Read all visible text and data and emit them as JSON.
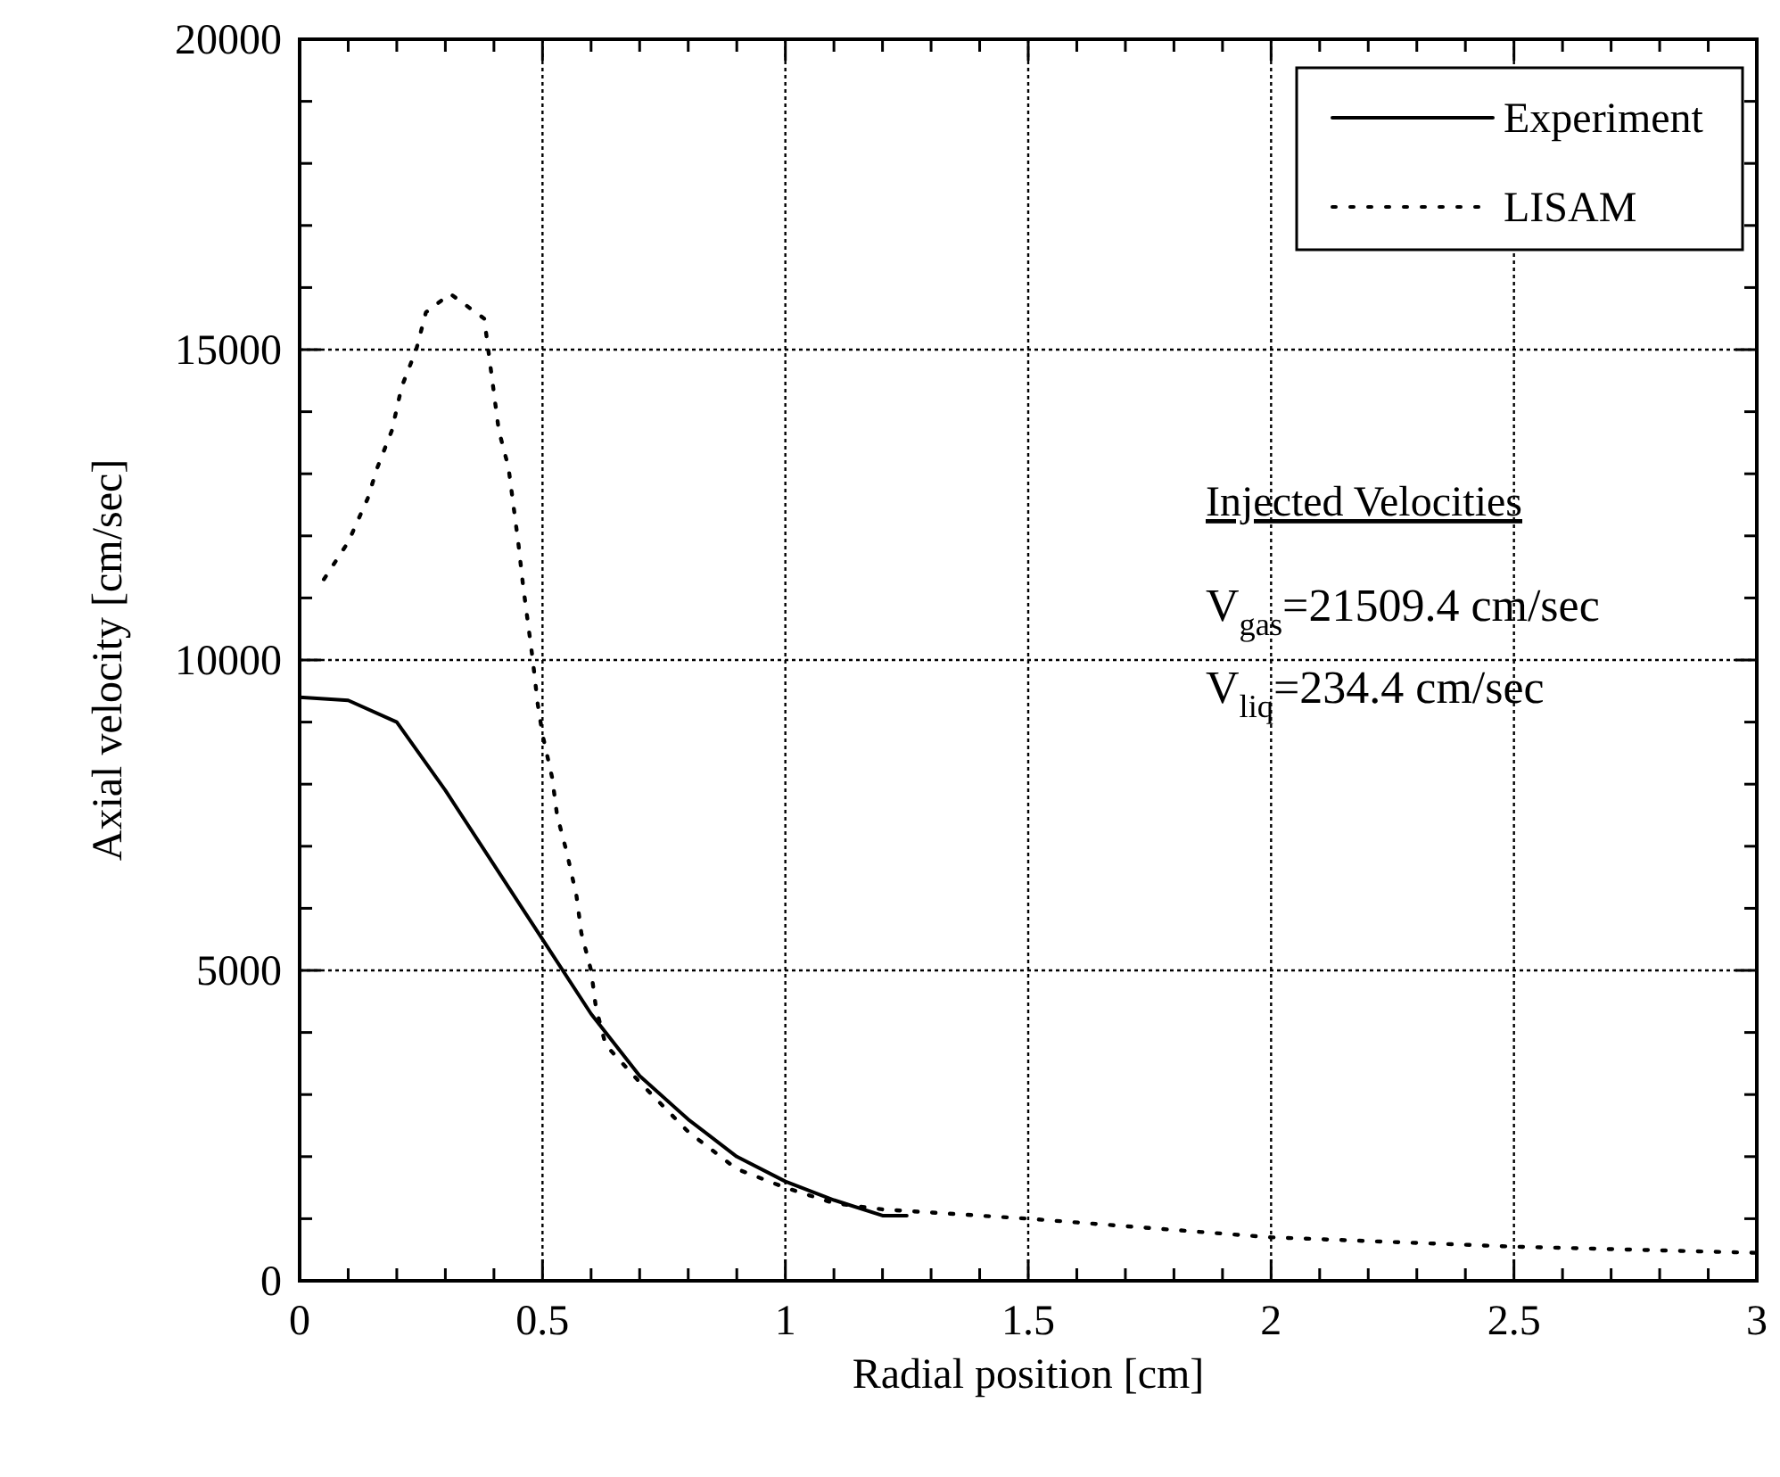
{
  "chart_data": {
    "type": "line",
    "xlabel": "Radial position [cm]",
    "ylabel": "Axial velocity [cm/sec]",
    "xlim": [
      0,
      3
    ],
    "ylim": [
      0,
      20000
    ],
    "xticks": [
      0,
      {
        "value": 0.1,
        "label": null
      },
      {
        "value": 0.2,
        "label": null
      },
      {
        "value": 0.3,
        "label": null
      },
      {
        "value": 0.4,
        "label": null
      },
      0.5,
      {
        "value": 0.6,
        "label": null
      },
      {
        "value": 0.7,
        "label": null
      },
      {
        "value": 0.8,
        "label": null
      },
      {
        "value": 0.9,
        "label": null
      },
      1,
      {
        "value": 1.1,
        "label": null
      },
      {
        "value": 1.2,
        "label": null
      },
      {
        "value": 1.3,
        "label": null
      },
      {
        "value": 1.4,
        "label": null
      },
      1.5,
      {
        "value": 1.6,
        "label": null
      },
      {
        "value": 1.7,
        "label": null
      },
      {
        "value": 1.8,
        "label": null
      },
      {
        "value": 1.9,
        "label": null
      },
      2,
      {
        "value": 2.1,
        "label": null
      },
      {
        "value": 2.2,
        "label": null
      },
      {
        "value": 2.3,
        "label": null
      },
      {
        "value": 2.4,
        "label": null
      },
      2.5,
      {
        "value": 2.6,
        "label": null
      },
      {
        "value": 2.7,
        "label": null
      },
      {
        "value": 2.8,
        "label": null
      },
      {
        "value": 2.9,
        "label": null
      },
      3
    ],
    "yticks": [
      0,
      {
        "value": 1000,
        "label": null
      },
      {
        "value": 2000,
        "label": null
      },
      {
        "value": 3000,
        "label": null
      },
      {
        "value": 4000,
        "label": null
      },
      5000,
      {
        "value": 6000,
        "label": null
      },
      {
        "value": 7000,
        "label": null
      },
      {
        "value": 8000,
        "label": null
      },
      {
        "value": 9000,
        "label": null
      },
      10000,
      {
        "value": 11000,
        "label": null
      },
      {
        "value": 12000,
        "label": null
      },
      {
        "value": 13000,
        "label": null
      },
      {
        "value": 14000,
        "label": null
      },
      15000,
      {
        "value": 16000,
        "label": null
      },
      {
        "value": 17000,
        "label": null
      },
      {
        "value": 18000,
        "label": null
      },
      {
        "value": 19000,
        "label": null
      },
      20000
    ],
    "grid": true,
    "legend": "top right",
    "annotations": [
      "Injected Velocities",
      "V$_{gas}$=21509.4 cm/sec",
      "V$_{liq}$=234.4 cm/sec"
    ],
    "series": [
      {
        "name": "Experiment",
        "color": "#000000",
        "line_style": "solid",
        "x": [
          0,
          0.1,
          0.2,
          0.3,
          0.4,
          0.5,
          0.6,
          0.7,
          0.8,
          0.9,
          1.0,
          1.1,
          1.2,
          1.25
        ],
        "values": [
          9400,
          9350,
          9000,
          7900,
          6700,
          5500,
          4300,
          3300,
          2600,
          2000,
          1600,
          1300,
          1050,
          1050
        ]
      },
      {
        "name": "LISAM",
        "color": "#000000",
        "line_style": "dotted",
        "x": [
          0.05,
          0.1,
          0.14,
          0.16,
          0.19,
          0.21,
          0.24,
          0.26,
          0.31,
          0.38,
          0.39,
          0.4,
          0.41,
          0.43,
          0.44,
          0.45,
          0.46,
          0.47,
          0.48,
          0.49,
          0.5,
          0.52,
          0.53,
          0.55,
          0.57,
          0.58,
          0.6,
          0.61,
          0.63,
          0.7,
          0.8,
          0.9,
          1.0,
          1.1,
          1.2,
          1.5,
          2.0,
          2.5,
          3.0
        ],
        "values": [
          11300,
          11900,
          12600,
          13100,
          13700,
          14400,
          15000,
          15600,
          15900,
          15500,
          14900,
          14300,
          13700,
          13100,
          12500,
          11900,
          11200,
          10600,
          10000,
          9300,
          8800,
          8100,
          7500,
          6900,
          6200,
          5600,
          5000,
          4400,
          3800,
          3200,
          2400,
          1800,
          1500,
          1250,
          1150,
          1000,
          700,
          550,
          450
        ]
      }
    ]
  }
}
